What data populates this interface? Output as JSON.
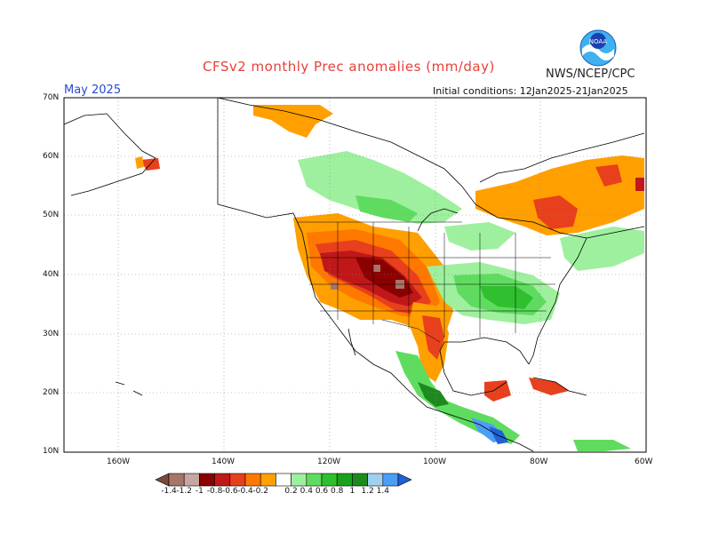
{
  "header": {
    "title": "CFSv2 monthly Prec anomalies (mm/day)",
    "month": "May 2025",
    "org": "NWS/NCEP/CPC",
    "initial_conditions": "Initial conditions: 12Jan2025-21Jan2025",
    "logo_text": "NOAA"
  },
  "axes": {
    "lat_labels": [
      "70N",
      "60N",
      "50N",
      "40N",
      "30N",
      "20N",
      "10N"
    ],
    "lon_labels": [
      "160W",
      "140W",
      "120W",
      "100W",
      "80W",
      "60W"
    ]
  },
  "colorbar": {
    "labels": [
      "-1.4",
      "-1.2",
      "-1",
      "-0.8",
      "-0.6",
      "-0.4",
      "-0.2",
      "0.2",
      "0.4",
      "0.6",
      "0.8",
      "1",
      "1.2",
      "1.4"
    ],
    "colors": [
      "#7a4a3a",
      "#a7756a",
      "#c4a89f",
      "#8b0000",
      "#c01818",
      "#e8401c",
      "#ff7800",
      "#ffa000",
      "#ffffff",
      "#9ef09e",
      "#5fdc5f",
      "#2fbf2f",
      "#18a218",
      "#1e8a1e",
      "#9fd0f0",
      "#4b9ef5",
      "#2060d8"
    ]
  },
  "colors": {
    "title_red": "#e8413a",
    "month_blue": "#2a4ad0"
  }
}
